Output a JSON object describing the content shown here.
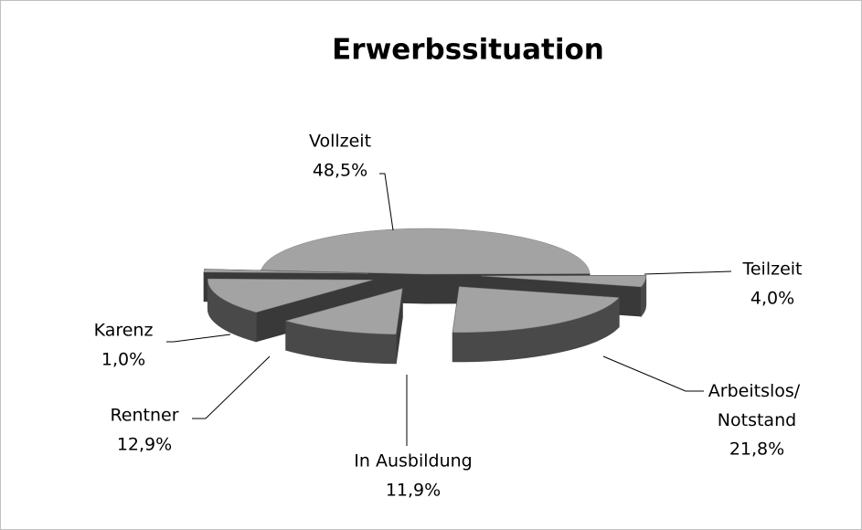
{
  "chart_data": {
    "type": "pie",
    "title": "Erwerbssituation",
    "categories": [
      "Vollzeit",
      "Teilzeit",
      "Arbeitslos/ Notstand",
      "In Ausbildung",
      "Rentner",
      "Karenz"
    ],
    "values": [
      48.5,
      4.0,
      21.8,
      11.9,
      12.9,
      1.0
    ],
    "value_labels": [
      "48,5%",
      "4,0%",
      "21,8%",
      "11,9%",
      "12,9%",
      "1,0%"
    ],
    "colors": [
      "#a3a3a3",
      "#a3a3a3",
      "#a3a3a3",
      "#a3a3a3",
      "#a3a3a3",
      "#a3a3a3"
    ]
  }
}
